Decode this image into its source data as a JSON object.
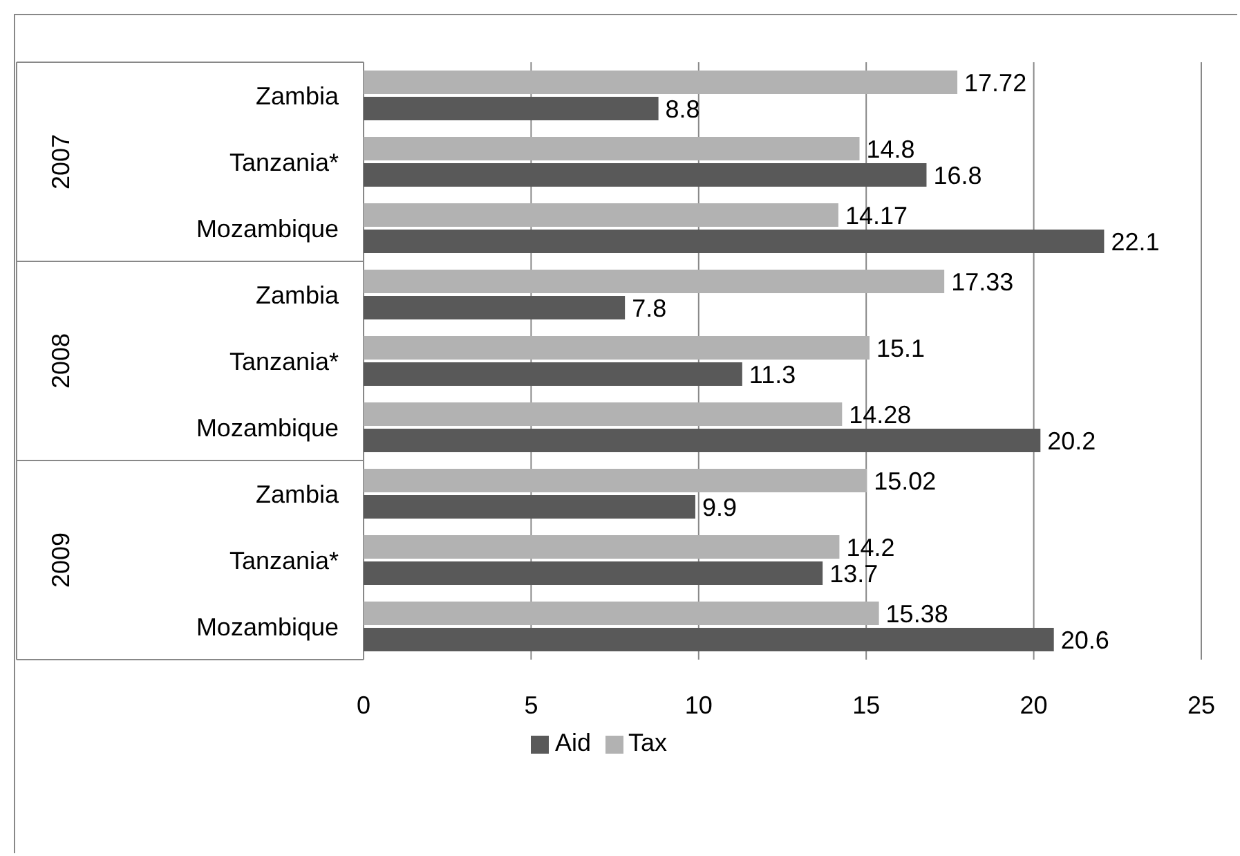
{
  "chart_data": {
    "type": "bar",
    "orientation": "horizontal",
    "categories": [
      "Zambia",
      "Tanzania*",
      "Mozambique",
      "Zambia",
      "Tanzania*",
      "Mozambique",
      "Zambia",
      "Tanzania*",
      "Mozambique"
    ],
    "series": [
      {
        "name": "Tax",
        "color": "#b2b2b2",
        "values": [
          17.72,
          14.8,
          14.17,
          17.33,
          15.1,
          14.28,
          15.02,
          14.2,
          15.38
        ]
      },
      {
        "name": "Aid",
        "color": "#595959",
        "values": [
          8.8,
          16.8,
          22.1,
          7.8,
          11.3,
          20.2,
          9.9,
          13.7,
          20.6
        ]
      }
    ],
    "annotations": [
      "2007",
      "2008",
      "2009"
    ],
    "xlim": [
      0,
      25
    ],
    "xticks": [
      0,
      5,
      10,
      15,
      20,
      25
    ],
    "grid": "x",
    "legend": "bottom",
    "data_labels": true
  }
}
